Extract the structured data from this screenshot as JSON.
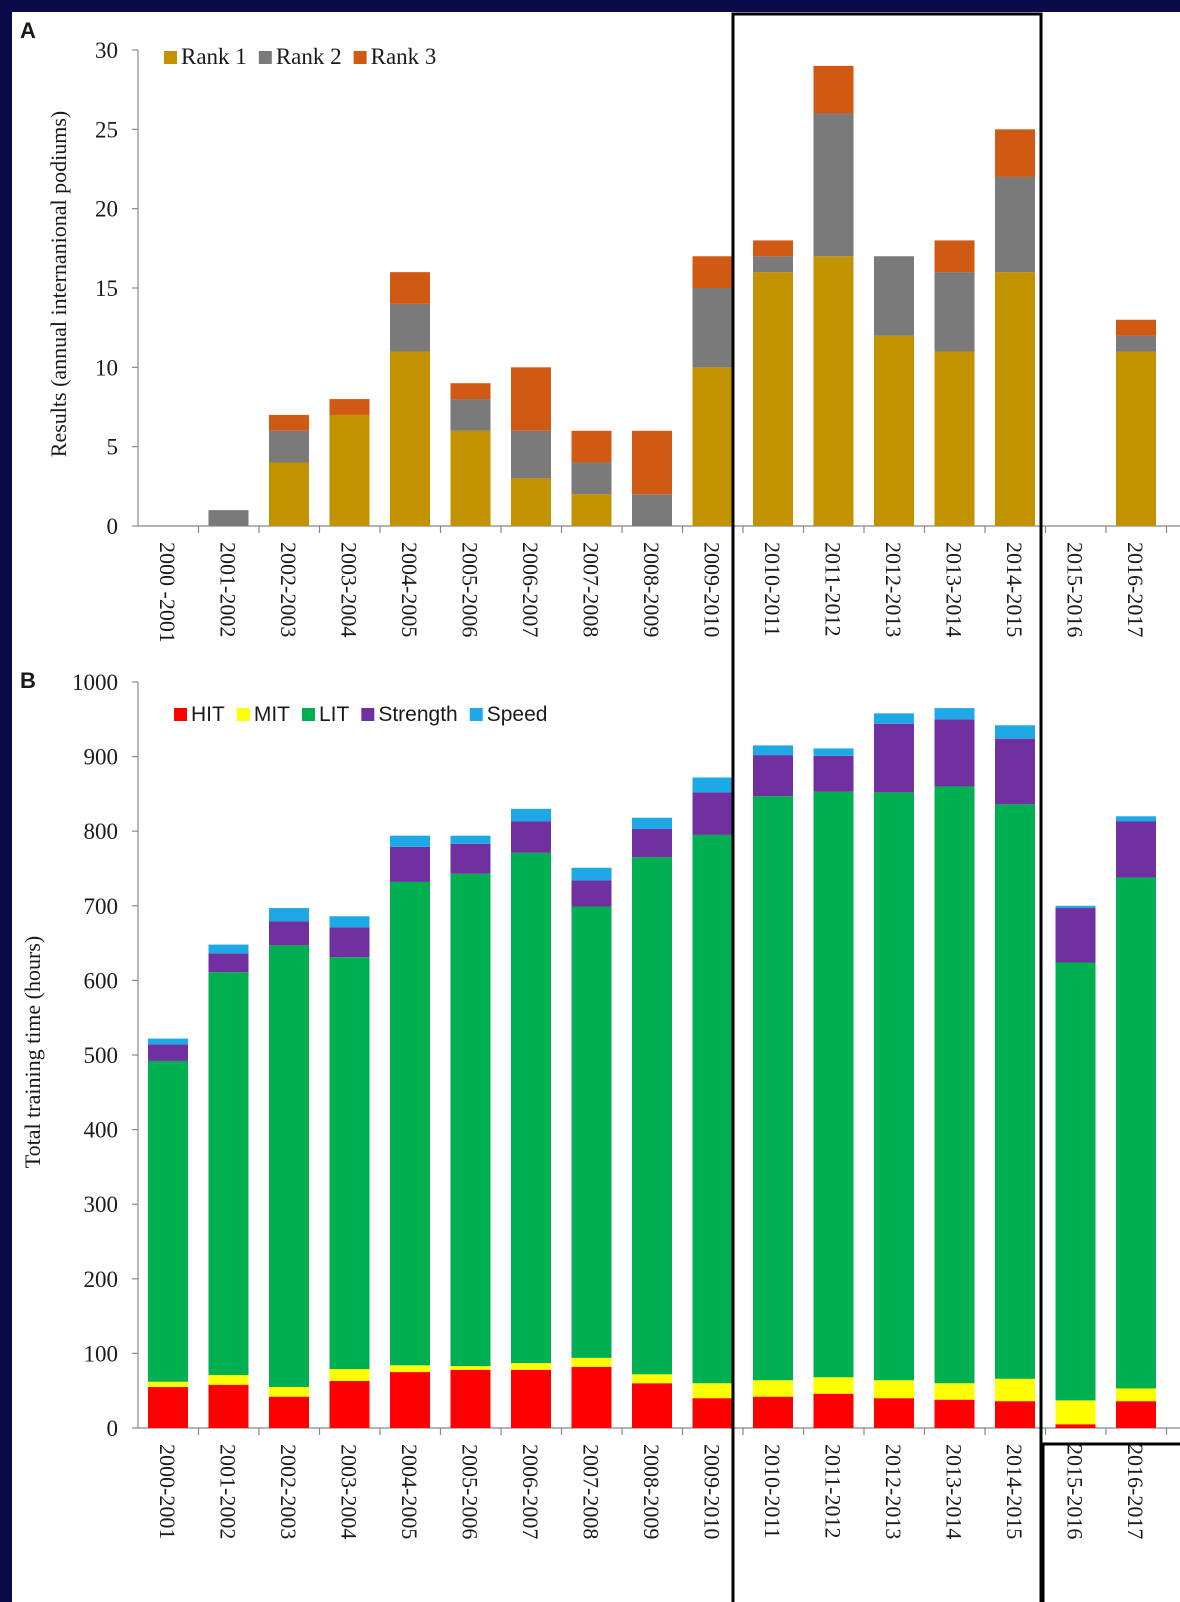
{
  "chart_data": [
    {
      "type": "bar",
      "stacked": true,
      "panel_label": "A",
      "title": "",
      "xlabel": "",
      "ylabel": "Results (annual internanional podiums)",
      "ylim": [
        0,
        30
      ],
      "yticks": [
        0,
        5,
        10,
        15,
        20,
        25,
        30
      ],
      "legend": "top-left",
      "grid": false,
      "categories": [
        "2000 -2001",
        "2001-2002",
        "2002-2003",
        "2003-2004",
        "2004-2005",
        "2005-2006",
        "2006-2007",
        "2007-2008",
        "2008-2009",
        "2009-2010",
        "2010-2011",
        "2011-2012",
        "2012-2013",
        "2013-2014",
        "2014-2015",
        "2015-2016",
        "2016-2017"
      ],
      "series": [
        {
          "name": "Rank 1",
          "color": "#c39200",
          "values": [
            0,
            0,
            4,
            7,
            11,
            6,
            3,
            2,
            0,
            10,
            16,
            17,
            12,
            11,
            16,
            0,
            11
          ]
        },
        {
          "name": "Rank 2",
          "color": "#7a7a7a",
          "values": [
            0,
            1,
            2,
            0,
            3,
            2,
            3,
            2,
            2,
            5,
            1,
            9,
            5,
            5,
            6,
            0,
            1
          ]
        },
        {
          "name": "Rank 3",
          "color": "#d05a14",
          "values": [
            0,
            0,
            1,
            1,
            2,
            1,
            4,
            2,
            4,
            2,
            1,
            3,
            0,
            2,
            3,
            0,
            1
          ]
        }
      ]
    },
    {
      "type": "bar",
      "stacked": true,
      "panel_label": "B",
      "title": "",
      "xlabel": "",
      "ylabel": "Total training time (hours)",
      "ylim": [
        0,
        1000
      ],
      "yticks": [
        0,
        100,
        200,
        300,
        400,
        500,
        600,
        700,
        800,
        900,
        1000
      ],
      "legend": "top-left",
      "grid": false,
      "categories": [
        "2000-2001",
        "2001-2002",
        "2002-2003",
        "2003-2004",
        "2004-2005",
        "2005-2006",
        "2006-2007",
        "2007-2008",
        "2008-2009",
        "2009-2010",
        "2010-2011",
        "2011-2012",
        "2012-2013",
        "2013-2014",
        "2014-2015",
        "2015-2016",
        "2016-2017"
      ],
      "series": [
        {
          "name": "HIT",
          "color": "#ff0000",
          "values": [
            55,
            58,
            42,
            63,
            75,
            78,
            78,
            82,
            60,
            40,
            42,
            46,
            40,
            38,
            36,
            5,
            36
          ]
        },
        {
          "name": "MIT",
          "color": "#ffff00",
          "values": [
            7,
            13,
            13,
            16,
            9,
            5,
            9,
            12,
            12,
            20,
            22,
            22,
            24,
            22,
            30,
            32,
            17
          ]
        },
        {
          "name": "LIT",
          "color": "#00b050",
          "values": [
            430,
            540,
            592,
            552,
            648,
            660,
            684,
            605,
            693,
            735,
            783,
            785,
            788,
            800,
            770,
            587,
            685
          ]
        },
        {
          "name": "Strength",
          "color": "#7030a0",
          "values": [
            22,
            25,
            32,
            40,
            47,
            40,
            42,
            35,
            38,
            57,
            55,
            48,
            92,
            90,
            88,
            73,
            75
          ]
        },
        {
          "name": "Speed",
          "color": "#1fa8e6",
          "values": [
            8,
            12,
            18,
            15,
            15,
            11,
            17,
            17,
            15,
            20,
            13,
            10,
            14,
            15,
            18,
            3,
            7
          ]
        }
      ]
    }
  ]
}
